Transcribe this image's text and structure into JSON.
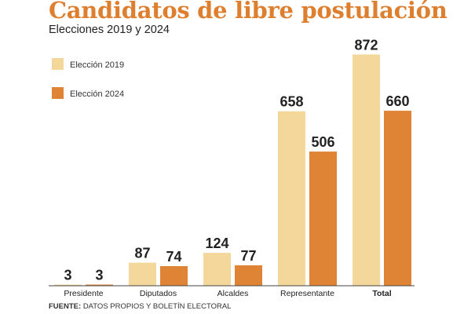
{
  "chart_data": {
    "type": "bar",
    "title": "Candidatos de libre postulación",
    "subtitle": "Elecciones 2019 y 2024",
    "categories": [
      "Presidente",
      "Diputados",
      "Alcaldes",
      "Representante",
      "Total"
    ],
    "bold_categories": [
      "Total"
    ],
    "series": [
      {
        "name": "Elección 2019",
        "values": [
          3,
          87,
          124,
          658,
          872
        ],
        "color": "#f3d79b"
      },
      {
        "name": "Elección 2024",
        "values": [
          3,
          74,
          77,
          506,
          660
        ],
        "color": "#df8335"
      }
    ],
    "ylim": [
      0,
      900
    ],
    "grid": false,
    "legend_position": "top-left",
    "title_color": "#de7f30"
  },
  "source": {
    "label": "FUENTE:",
    "text": "DATOS PROPIOS Y BOLETÍN ELECTORAL"
  }
}
